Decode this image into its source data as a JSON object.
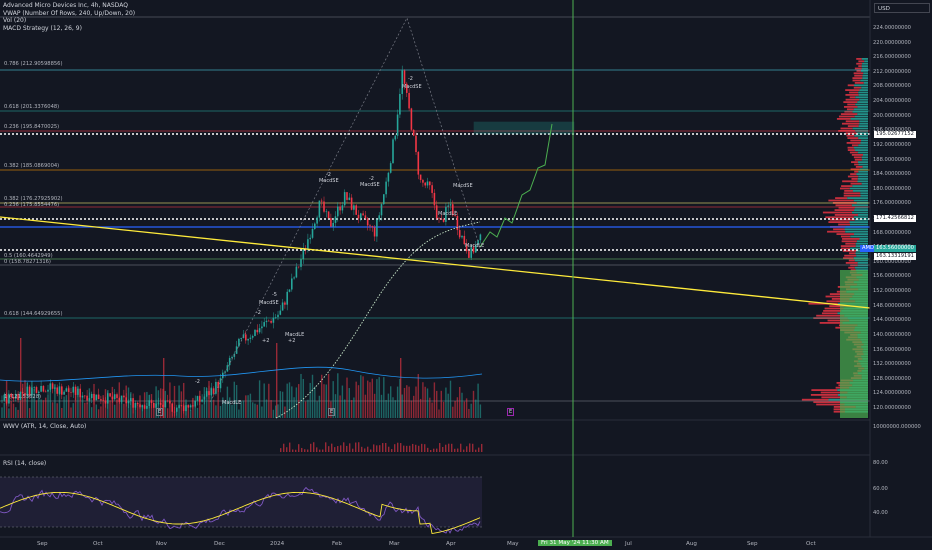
{
  "legend": {
    "title": "Advanced Micro Devices Inc, 4h, NASDAQ",
    "vwap": "VWAP (Number Of Rows, 240, Up/Down, 20)",
    "vol": "Vol (20)",
    "strategy": "MACD Strategy (12, 26, 9)"
  },
  "currency": "USD",
  "fib_levels": [
    {
      "label": "0.786 (212.90598856)",
      "color": "#4dd0e1"
    },
    {
      "label": "0.618 (201.3376048)",
      "color": "#26a69a"
    },
    {
      "label": "0.236 (195.8470025)",
      "color": "#f23645"
    },
    {
      "label": "0.382 (185.0869004)",
      "color": "#ff9800"
    },
    {
      "label": "0.382 (176.27925902)",
      "color": "#fff176"
    },
    {
      "label": "0.236 (175.8554476)",
      "color": "#f23645"
    },
    {
      "label": "0.5 (160.4642949)",
      "color": "#66bb6a"
    },
    {
      "label": "0 (158.78271316)",
      "color": "#787b86"
    },
    {
      "label": "0.618 (144.64929655)",
      "color": "#26a69a"
    },
    {
      "label": "1 (121.53628)",
      "color": "#787b86"
    }
  ],
  "price_axis": [
    "224.00000000",
    "220.00000000",
    "216.00000000",
    "212.00000000",
    "208.00000000",
    "204.00000000",
    "200.00000000",
    "196.00000000",
    "192.00000000",
    "188.00000000",
    "184.00000000",
    "180.00000000",
    "176.00000000",
    "172.00000000",
    "168.00000000",
    "164.00000000",
    "160.00000000",
    "156.00000000",
    "152.00000000",
    "148.00000000",
    "144.00000000",
    "140.00000000",
    "136.00000000",
    "132.00000000",
    "128.00000000",
    "124.00000000",
    "120.00000000"
  ],
  "price_boxes": {
    "upper": "195.02677152",
    "mid": "171.42566812",
    "amd_tag": "AMD",
    "last": "163.56000000",
    "lower": "163.13319191"
  },
  "signals": [
    "MacdSE",
    "MacdLE",
    "-2",
    "+2",
    "-5",
    "E"
  ],
  "panels": {
    "atr_legend": "WWV (ATR, 14, Close, Auto)",
    "atr_value": "10000000.000000",
    "rsi_legend": "RSI (14, close)",
    "rsi_axis": [
      "80.00",
      "60.00",
      "40.00"
    ]
  },
  "time_axis": [
    "Sep",
    "Oct",
    "Nov",
    "Dec",
    "2024",
    "Feb",
    "Mar",
    "Apr",
    "May",
    "Jul",
    "Aug",
    "Sep",
    "Oct"
  ],
  "cursor_label": "Fri 31 May '24   11:30 AM",
  "colors": {
    "up": "#26a69a",
    "down": "#f23645",
    "bg": "#131722",
    "ma": "#ffeb3b",
    "vline": "#4caf50"
  }
}
